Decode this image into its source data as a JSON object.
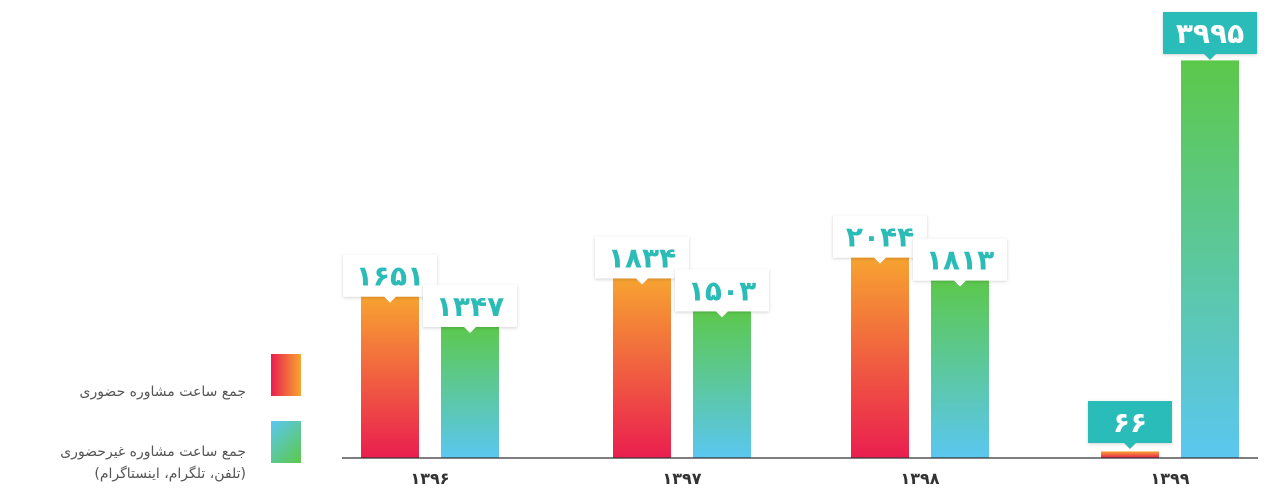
{
  "chart_data": {
    "type": "bar",
    "categories": [
      "۱۳۹۶",
      "۱۳۹۷",
      "۱۳۹۸",
      "۱۳۹۹"
    ],
    "series": [
      {
        "name": "جمع ساعت مشاوره حضوری",
        "values": [
          1651,
          1834,
          2044,
          66
        ],
        "value_labels": [
          "۱۶۵۱",
          "۱۸۳۴",
          "۲۰۴۴",
          "۶۶"
        ],
        "gradient": [
          "#f7a530",
          "#ea1e4f"
        ]
      },
      {
        "name": "جمع ساعت مشاوره غیرحضوری",
        "name_line2": "(تلفن، تلگرام، اینستاگرام)",
        "values": [
          1347,
          1503,
          1813,
          3995
        ],
        "value_labels": [
          "۱۳۴۷",
          "۱۵۰۳",
          "۱۸۱۳",
          "۳۹۹۵"
        ],
        "gradient": [
          "#5cc84a",
          "#5bc7f0"
        ]
      }
    ],
    "ylim": [
      0,
      4200
    ],
    "grid": false,
    "legend_position": "left",
    "colors": {
      "label_text": "#2bbcb8",
      "highlight_box": "#2bbcb8",
      "highlight_text": "#ffffff",
      "axis": "#333333"
    }
  }
}
